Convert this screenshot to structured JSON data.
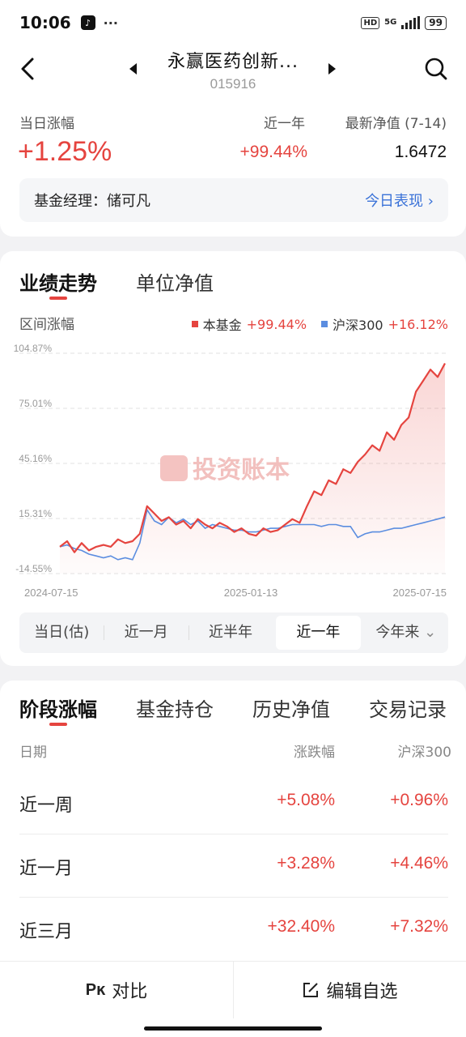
{
  "status": {
    "time": "10:06",
    "dots": "···",
    "hd": "HD",
    "network": "5G",
    "battery": "99"
  },
  "header": {
    "fund_name": "永赢医药创新...",
    "fund_code": "015916"
  },
  "summary": {
    "daily_label": "当日涨幅",
    "daily_value": "+1.25%",
    "year_label": "近一年",
    "year_value": "+99.44%",
    "nav_label": "最新净值 (7-14)",
    "nav_value": "1.6472"
  },
  "manager": {
    "label": "基金经理：储可凡",
    "link": "今日表现"
  },
  "chart_tabs": [
    "业绩走势",
    "单位净值"
  ],
  "chart_legend": {
    "range_label": "区间涨幅",
    "fund_label": "本基金",
    "fund_value": "+99.44%",
    "index_label": "沪深300",
    "index_value": "+16.12%"
  },
  "watermark": "投资账本",
  "range_tabs": [
    "当日(估)",
    "近一月",
    "近半年",
    "近一年",
    "今年来"
  ],
  "range_selected": 3,
  "perf_tabs": [
    "阶段涨幅",
    "基金持仓",
    "历史净值",
    "交易记录"
  ],
  "perf_headers": {
    "date": "日期",
    "change": "涨跌幅",
    "index": "沪深300"
  },
  "perf_rows": [
    {
      "period": "近一周",
      "change": "+5.08%",
      "index": "+0.96%"
    },
    {
      "period": "近一月",
      "change": "+3.28%",
      "index": "+4.46%"
    },
    {
      "period": "近三月",
      "change": "+32.40%",
      "index": "+7.32%"
    }
  ],
  "bottom": {
    "compare": "对比",
    "edit": "编辑自选"
  },
  "colors": {
    "accent": "#e5443f",
    "link": "#3a72d8",
    "index_line": "#5b8de0"
  },
  "chart_data": {
    "type": "line",
    "ylabel": "区间涨幅",
    "x_ticks": [
      "2024-07-15",
      "2025-01-13",
      "2025-07-15"
    ],
    "y_ticks": [
      "104.87%",
      "75.01%",
      "45.16%",
      "15.31%",
      "-14.55%"
    ],
    "ylim": [
      -14.55,
      104.87
    ],
    "grid": true,
    "legend_position": "top-right",
    "series": [
      {
        "name": "本基金",
        "values": [
          0,
          3,
          -3,
          2,
          -2,
          0,
          1,
          0,
          4,
          2,
          3,
          7,
          22,
          18,
          14,
          16,
          12,
          14,
          10,
          15,
          12,
          10,
          13,
          11,
          8,
          10,
          7,
          6,
          10,
          8,
          9,
          12,
          15,
          13,
          22,
          30,
          28,
          36,
          34,
          42,
          40,
          46,
          50,
          55,
          52,
          62,
          58,
          66,
          70,
          84,
          90,
          96,
          92,
          99.4
        ]
      },
      {
        "name": "沪深300",
        "values": [
          0,
          1,
          -1,
          -2,
          -4,
          -5,
          -6,
          -5,
          -7,
          -6,
          -7,
          2,
          20,
          14,
          12,
          16,
          13,
          15,
          12,
          14,
          10,
          12,
          11,
          10,
          9,
          9,
          8,
          8,
          9,
          10,
          10,
          11,
          12,
          12,
          12,
          12,
          11,
          12,
          12,
          11,
          11,
          5,
          7,
          8,
          8,
          9,
          10,
          10,
          11,
          12,
          13,
          14,
          15,
          16.1
        ]
      }
    ]
  }
}
